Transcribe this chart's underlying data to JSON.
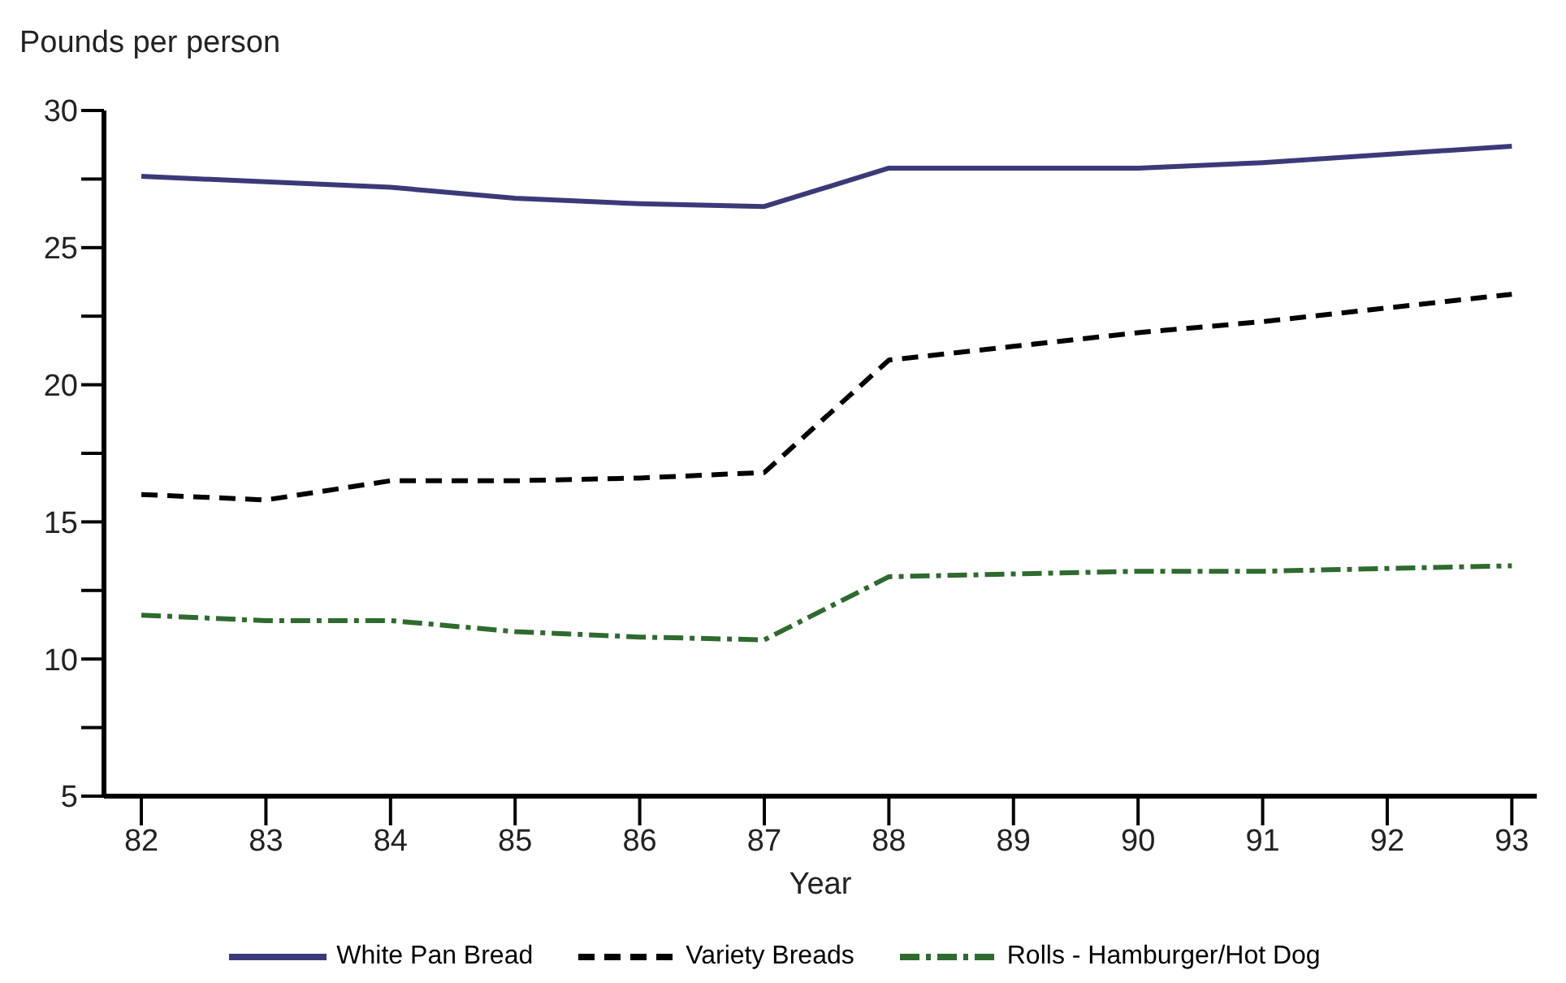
{
  "chart_data": {
    "type": "line",
    "ylabel": "Pounds per person",
    "xlabel": "Year",
    "x": [
      82,
      83,
      84,
      85,
      86,
      87,
      88,
      89,
      90,
      91,
      92,
      93
    ],
    "xlim": [
      81.7,
      93.2
    ],
    "xticks": [
      82,
      83,
      84,
      85,
      86,
      87,
      88,
      89,
      90,
      91,
      92,
      93
    ],
    "ylim": [
      5,
      30
    ],
    "yticks": [
      5,
      {
        "value": 7.5,
        "label": null
      },
      10,
      {
        "value": 12.5,
        "label": null
      },
      15,
      {
        "value": 17.5,
        "label": null
      },
      20,
      {
        "value": 22.5,
        "label": null
      },
      25,
      {
        "value": 27.5,
        "label": null
      },
      30
    ],
    "grid": false,
    "legend": "bottom",
    "marker": "none",
    "series": [
      {
        "name": "White Pan Bread",
        "color": "#3a3a7a",
        "line_style": "solid",
        "values": [
          27.6,
          27.4,
          27.2,
          26.8,
          26.6,
          26.5,
          27.9,
          27.9,
          27.9,
          28.1,
          28.4,
          28.7
        ]
      },
      {
        "name": "Variety Breads",
        "color": "#000000",
        "line_style": "dashed",
        "values": [
          16.0,
          15.8,
          16.5,
          16.5,
          16.6,
          16.8,
          20.9,
          21.4,
          21.9,
          22.3,
          22.8,
          23.3
        ]
      },
      {
        "name": "Rolls - Hamburger/Hot Dog",
        "color": "#2e6b2e",
        "line_style": "dashdot",
        "values": [
          11.6,
          11.4,
          11.4,
          11.0,
          10.8,
          10.7,
          13.0,
          13.1,
          13.2,
          13.2,
          13.3,
          13.4
        ]
      }
    ]
  }
}
